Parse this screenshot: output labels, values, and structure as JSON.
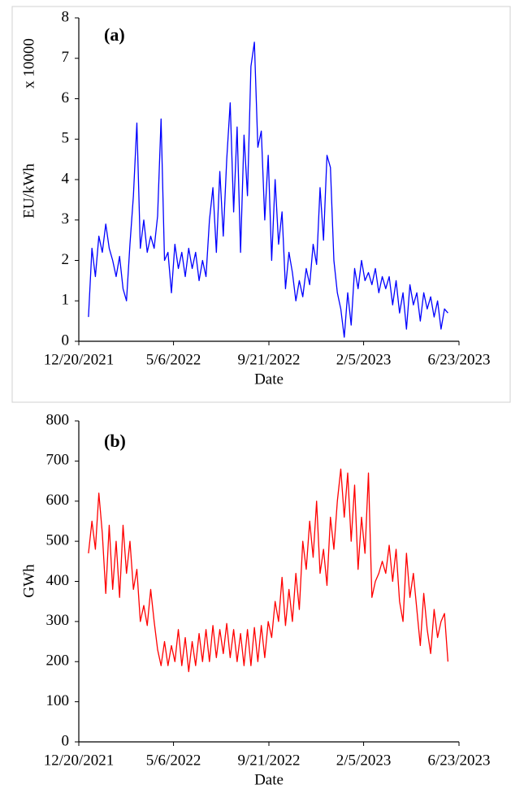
{
  "chart_data": [
    {
      "type": "line",
      "annotation": "(a)",
      "y_label": "EU/kWh",
      "y_multiplier": "x 10000",
      "x_label": "Date",
      "xlim": [
        "12/20/2021",
        "6/23/2023"
      ],
      "xticks": [
        "12/20/2021",
        "5/6/2022",
        "9/21/2022",
        "2/5/2023",
        "6/23/2023"
      ],
      "ylim": [
        0,
        8
      ],
      "yticks": [
        0,
        1,
        2,
        3,
        4,
        5,
        6,
        7,
        8
      ],
      "grid": false,
      "frame": true,
      "x": [
        "1/3/2022",
        "1/8/2022",
        "1/13/2022",
        "1/18/2022",
        "1/23/2022",
        "1/28/2022",
        "2/2/2022",
        "2/7/2022",
        "2/12/2022",
        "2/17/2022",
        "2/22/2022",
        "2/27/2022",
        "3/4/2022",
        "3/9/2022",
        "3/14/2022",
        "3/19/2022",
        "3/24/2022",
        "3/29/2022",
        "4/3/2022",
        "4/8/2022",
        "4/13/2022",
        "4/18/2022",
        "4/23/2022",
        "4/28/2022",
        "5/3/2022",
        "5/8/2022",
        "5/13/2022",
        "5/18/2022",
        "5/23/2022",
        "5/28/2022",
        "6/2/2022",
        "6/7/2022",
        "6/12/2022",
        "6/17/2022",
        "6/22/2022",
        "6/27/2022",
        "7/2/2022",
        "7/7/2022",
        "7/12/2022",
        "7/17/2022",
        "7/22/2022",
        "7/27/2022",
        "8/1/2022",
        "8/6/2022",
        "8/11/2022",
        "8/16/2022",
        "8/21/2022",
        "8/26/2022",
        "8/31/2022",
        "9/5/2022",
        "9/10/2022",
        "9/15/2022",
        "9/20/2022",
        "9/25/2022",
        "9/30/2022",
        "10/5/2022",
        "10/10/2022",
        "10/15/2022",
        "10/20/2022",
        "10/25/2022",
        "10/30/2022",
        "11/4/2022",
        "11/9/2022",
        "11/14/2022",
        "11/19/2022",
        "11/24/2022",
        "11/29/2022",
        "12/4/2022",
        "12/9/2022",
        "12/14/2022",
        "12/19/2022",
        "12/24/2022",
        "12/29/2022",
        "1/3/2023",
        "1/8/2023",
        "1/13/2023",
        "1/18/2023",
        "1/23/2023",
        "1/28/2023",
        "2/2/2023",
        "2/7/2023",
        "2/12/2023",
        "2/17/2023",
        "2/22/2023",
        "2/27/2023",
        "3/4/2023",
        "3/9/2023",
        "3/14/2023",
        "3/19/2023",
        "3/24/2023",
        "3/29/2023",
        "4/3/2023",
        "4/8/2023",
        "4/13/2023",
        "4/18/2023",
        "4/23/2023",
        "4/28/2023",
        "5/3/2023",
        "5/8/2023",
        "5/13/2023",
        "5/18/2023",
        "5/23/2023",
        "5/28/2023",
        "6/2/2023",
        "6/7/2023"
      ],
      "series": [
        {
          "color": "#0000ff",
          "values": [
            0.6,
            2.3,
            1.6,
            2.6,
            2.2,
            2.9,
            2.3,
            2.0,
            1.6,
            2.1,
            1.3,
            1.0,
            2.4,
            3.6,
            5.4,
            2.3,
            3.0,
            2.2,
            2.6,
            2.3,
            3.1,
            5.5,
            2.0,
            2.2,
            1.2,
            2.4,
            1.8,
            2.2,
            1.6,
            2.3,
            1.8,
            2.2,
            1.5,
            2.0,
            1.6,
            3.0,
            3.8,
            2.2,
            4.2,
            2.6,
            4.5,
            5.9,
            3.2,
            5.3,
            2.2,
            5.1,
            3.6,
            6.8,
            7.4,
            4.8,
            5.2,
            3.0,
            4.6,
            2.0,
            4.0,
            2.4,
            3.2,
            1.3,
            2.2,
            1.7,
            1.0,
            1.5,
            1.1,
            1.8,
            1.4,
            2.4,
            1.9,
            3.8,
            2.5,
            4.6,
            4.3,
            2.0,
            1.2,
            0.8,
            0.1,
            1.2,
            0.4,
            1.8,
            1.3,
            2.0,
            1.5,
            1.7,
            1.4,
            1.8,
            1.2,
            1.6,
            1.3,
            1.6,
            0.9,
            1.5,
            0.7,
            1.2,
            0.3,
            1.4,
            0.9,
            1.2,
            0.5,
            1.2,
            0.8,
            1.1,
            0.6,
            1.0,
            0.3,
            0.8,
            0.7
          ]
        }
      ]
    },
    {
      "type": "line",
      "annotation": "(b)",
      "y_label": "GWh",
      "x_label": "Date",
      "xlim": [
        "12/20/2021",
        "6/23/2023"
      ],
      "xticks": [
        "12/20/2021",
        "5/6/2022",
        "9/21/2022",
        "2/5/2023",
        "6/23/2023"
      ],
      "ylim": [
        0,
        800
      ],
      "yticks": [
        0,
        100,
        200,
        300,
        400,
        500,
        600,
        700,
        800
      ],
      "grid": false,
      "frame": false,
      "x": [
        "1/3/2022",
        "1/8/2022",
        "1/13/2022",
        "1/18/2022",
        "1/23/2022",
        "1/28/2022",
        "2/2/2022",
        "2/7/2022",
        "2/12/2022",
        "2/17/2022",
        "2/22/2022",
        "2/27/2022",
        "3/4/2022",
        "3/9/2022",
        "3/14/2022",
        "3/19/2022",
        "3/24/2022",
        "3/29/2022",
        "4/3/2022",
        "4/8/2022",
        "4/13/2022",
        "4/18/2022",
        "4/23/2022",
        "4/28/2022",
        "5/3/2022",
        "5/8/2022",
        "5/13/2022",
        "5/18/2022",
        "5/23/2022",
        "5/28/2022",
        "6/2/2022",
        "6/7/2022",
        "6/12/2022",
        "6/17/2022",
        "6/22/2022",
        "6/27/2022",
        "7/2/2022",
        "7/7/2022",
        "7/12/2022",
        "7/17/2022",
        "7/22/2022",
        "7/27/2022",
        "8/1/2022",
        "8/6/2022",
        "8/11/2022",
        "8/16/2022",
        "8/21/2022",
        "8/26/2022",
        "8/31/2022",
        "9/5/2022",
        "9/10/2022",
        "9/15/2022",
        "9/20/2022",
        "9/25/2022",
        "9/30/2022",
        "10/5/2022",
        "10/10/2022",
        "10/15/2022",
        "10/20/2022",
        "10/25/2022",
        "10/30/2022",
        "11/4/2022",
        "11/9/2022",
        "11/14/2022",
        "11/19/2022",
        "11/24/2022",
        "11/29/2022",
        "12/4/2022",
        "12/9/2022",
        "12/14/2022",
        "12/19/2022",
        "12/24/2022",
        "12/29/2022",
        "1/3/2023",
        "1/8/2023",
        "1/13/2023",
        "1/18/2023",
        "1/23/2023",
        "1/28/2023",
        "2/2/2023",
        "2/7/2023",
        "2/12/2023",
        "2/17/2023",
        "2/22/2023",
        "2/27/2023",
        "3/4/2023",
        "3/9/2023",
        "3/14/2023",
        "3/19/2023",
        "3/24/2023",
        "3/29/2023",
        "4/3/2023",
        "4/8/2023",
        "4/13/2023",
        "4/18/2023",
        "4/23/2023",
        "4/28/2023",
        "5/3/2023",
        "5/8/2023",
        "5/13/2023",
        "5/18/2023",
        "5/23/2023",
        "5/28/2023",
        "6/2/2023",
        "6/7/2023"
      ],
      "series": [
        {
          "color": "#ff0000",
          "values": [
            470,
            550,
            480,
            620,
            520,
            370,
            540,
            380,
            500,
            360,
            540,
            420,
            500,
            380,
            430,
            300,
            340,
            290,
            380,
            300,
            230,
            190,
            250,
            190,
            240,
            200,
            280,
            190,
            260,
            175,
            250,
            190,
            270,
            200,
            280,
            200,
            290,
            210,
            280,
            220,
            295,
            210,
            280,
            200,
            270,
            190,
            280,
            190,
            285,
            200,
            290,
            210,
            300,
            260,
            350,
            300,
            410,
            290,
            380,
            300,
            420,
            330,
            500,
            430,
            550,
            460,
            600,
            420,
            480,
            390,
            560,
            480,
            600,
            680,
            560,
            670,
            500,
            640,
            430,
            560,
            470,
            670,
            360,
            400,
            420,
            450,
            420,
            490,
            400,
            480,
            350,
            300,
            470,
            360,
            420,
            330,
            240,
            370,
            280,
            220,
            330,
            260,
            300,
            320,
            200
          ]
        }
      ]
    }
  ]
}
